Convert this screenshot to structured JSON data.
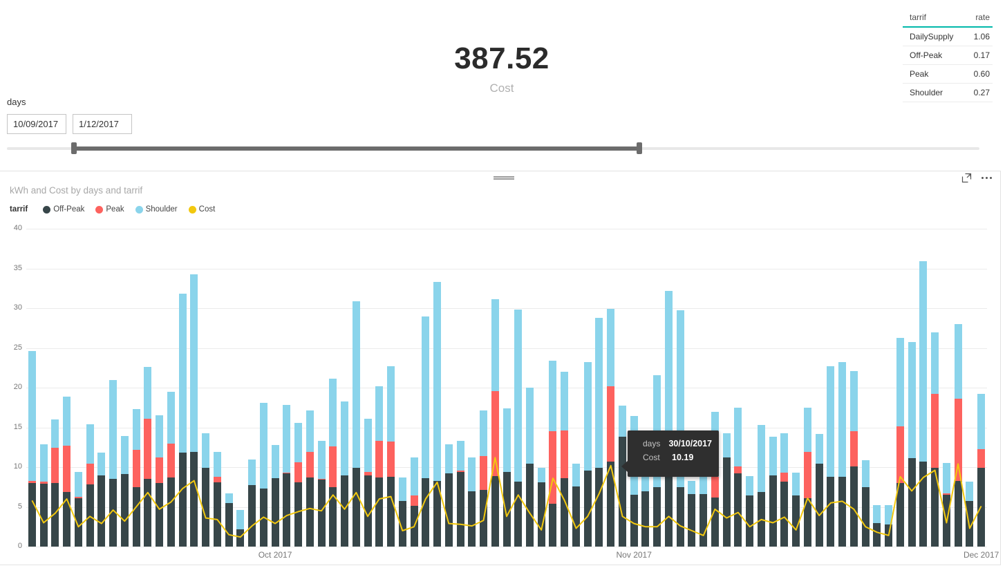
{
  "card": {
    "value": "387.52",
    "label": "Cost"
  },
  "rate_table": {
    "columns": [
      "tarrif",
      "rate"
    ],
    "rows": [
      [
        "DailySupply",
        "1.06"
      ],
      [
        "Off-Peak",
        "0.17"
      ],
      [
        "Peak",
        "0.60"
      ],
      [
        "Shoulder",
        "0.27"
      ]
    ]
  },
  "slicer": {
    "title": "days",
    "start_value": "10/09/2017",
    "end_value": "1/12/2017",
    "range_start_pct": 6.9,
    "range_end_pct": 65.0
  },
  "panel": {
    "legend_title": "tarrif",
    "icons": [
      "drag-handle-icon",
      "focus-mode-icon",
      "more-options-icon"
    ]
  },
  "tooltip": {
    "bar_index": 50,
    "rows": [
      {
        "label": "days",
        "value": "30/10/2017"
      },
      {
        "label": "Cost",
        "value": "10.19"
      }
    ]
  },
  "chart_data": {
    "type": "bar",
    "subtype": "stacked-bars-with-line",
    "title": "kWh and Cost by days and tarrif",
    "x_field": "days",
    "x_start_date": "10/09/2017",
    "x_end_date": "1/12/2017",
    "y_axis": {
      "min": 0,
      "max": 40,
      "ticks": [
        0,
        5,
        10,
        15,
        20,
        25,
        30,
        35,
        40
      ]
    },
    "grid": true,
    "legend_position": "top-left",
    "x_month_ticks": [
      {
        "label": "Oct 2017",
        "bar_index": 21
      },
      {
        "label": "Nov 2017",
        "bar_index": 52
      },
      {
        "label": "Dec 2017",
        "bar_index": 82
      }
    ],
    "series": [
      {
        "name": "Off-Peak",
        "type": "bar-segment",
        "color": "#374649",
        "key": "off_peak"
      },
      {
        "name": "Peak",
        "type": "bar-segment",
        "color": "#FD625E",
        "key": "peak"
      },
      {
        "name": "Shoulder",
        "type": "bar-segment",
        "color": "#8AD4EB",
        "key": "shoulder"
      },
      {
        "name": "Cost",
        "type": "line",
        "color": "#F2C80F",
        "key": "cost"
      }
    ],
    "off_peak": [
      8.0,
      7.9,
      8.0,
      6.9,
      6.1,
      7.8,
      9.0,
      8.5,
      9.1,
      7.5,
      8.5,
      8.0,
      8.7,
      11.8,
      11.9,
      9.9,
      8.1,
      5.5,
      2.2,
      7.7,
      7.3,
      8.6,
      9.2,
      8.1,
      8.7,
      8.4,
      7.5,
      9.0,
      9.9,
      9.0,
      8.7,
      8.8,
      5.7,
      5.1,
      8.6,
      8.3,
      9.2,
      9.4,
      7.0,
      7.1,
      8.9,
      9.4,
      8.2,
      10.4,
      8.1,
      5.4,
      8.6,
      7.6,
      9.6,
      9.9,
      10.7,
      13.8,
      6.5,
      7.0,
      7.5,
      9.5,
      7.5,
      6.6,
      6.6,
      6.2,
      11.2,
      9.2,
      6.4,
      6.9,
      9.0,
      8.2,
      6.4,
      6.1,
      10.4,
      8.8,
      8.8,
      10.1,
      7.5,
      3.0,
      2.8,
      8.0,
      11.1,
      10.7,
      9.9,
      6.5,
      8.3,
      5.7,
      9.9
    ],
    "peak": [
      0.3,
      0.3,
      4.4,
      5.8,
      0.2,
      2.6,
      0,
      0,
      0,
      4.7,
      7.6,
      3.2,
      4.3,
      0,
      0,
      0,
      0.7,
      0,
      0,
      0,
      0,
      0,
      0.1,
      2.5,
      3.2,
      0.1,
      5.1,
      0,
      0,
      0.4,
      4.6,
      4.4,
      0,
      1.3,
      0,
      0,
      0,
      0.2,
      0,
      4.3,
      10.7,
      0,
      0,
      0,
      0,
      9.1,
      6.0,
      0,
      0,
      0,
      9.5,
      0,
      0,
      0,
      0,
      0,
      0,
      0,
      0,
      2.6,
      0,
      0.9,
      0,
      0,
      0,
      1.1,
      0,
      5.8,
      0,
      0,
      0,
      4.4,
      0,
      0,
      0,
      7.1,
      0,
      0,
      9.3,
      0.2,
      10.3,
      0,
      2.4
    ],
    "shoulder": [
      16.3,
      4.7,
      3.6,
      6.2,
      3.1,
      5.0,
      2.8,
      12.5,
      4.8,
      5.1,
      6.5,
      5.3,
      6.5,
      20.0,
      22.4,
      4.4,
      3.1,
      1.2,
      2.4,
      3.3,
      10.8,
      4.2,
      8.5,
      5.0,
      5.2,
      4.8,
      8.5,
      9.3,
      21.0,
      6.7,
      6.9,
      9.5,
      3.0,
      4.8,
      20.4,
      25.0,
      3.7,
      3.7,
      4.2,
      5.7,
      11.5,
      8.0,
      21.6,
      9.6,
      1.8,
      8.9,
      7.4,
      2.8,
      13.6,
      18.9,
      9.7,
      3.9,
      9.9,
      7.0,
      14.1,
      22.7,
      22.2,
      1.7,
      7.4,
      8.2,
      3.1,
      7.4,
      2.5,
      8.4,
      4.8,
      5.0,
      2.9,
      5.6,
      3.8,
      13.9,
      14.4,
      7.6,
      3.4,
      2.2,
      2.4,
      11.2,
      14.6,
      25.2,
      7.8,
      3.8,
      9.4,
      2.5,
      6.9
    ],
    "cost": [
      5.8,
      3.0,
      4.2,
      6.0,
      2.5,
      3.8,
      2.9,
      4.6,
      3.2,
      5.0,
      6.8,
      4.7,
      5.6,
      7.3,
      8.3,
      3.6,
      3.4,
      1.5,
      1.2,
      2.6,
      3.7,
      2.9,
      3.9,
      4.4,
      4.8,
      4.5,
      6.5,
      4.7,
      6.8,
      3.8,
      6.0,
      6.3,
      2.0,
      2.5,
      6.0,
      8.1,
      2.9,
      2.8,
      2.6,
      3.3,
      11.2,
      3.8,
      6.5,
      4.2,
      2.1,
      8.6,
      5.8,
      2.3,
      3.8,
      6.7,
      10.19,
      3.8,
      2.9,
      2.5,
      2.5,
      3.8,
      2.6,
      2.0,
      1.4,
      4.7,
      3.6,
      4.3,
      2.5,
      3.4,
      3.0,
      3.7,
      2.1,
      6.1,
      3.9,
      5.5,
      5.7,
      4.7,
      2.5,
      1.8,
      1.4,
      8.8,
      7.0,
      8.7,
      9.6,
      3.0,
      10.4,
      2.3,
      5.1
    ]
  }
}
